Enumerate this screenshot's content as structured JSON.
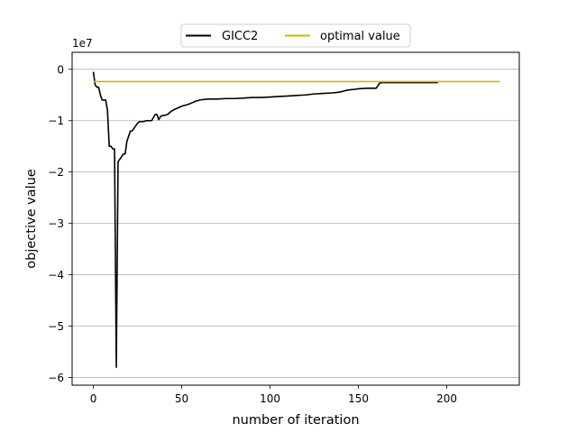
{
  "chart_data": {
    "type": "line",
    "title": "",
    "xlabel": "number of iteration",
    "ylabel": "objective value",
    "y_scale_label": "1e7",
    "xlim": [
      -12,
      241
    ],
    "ylim": [
      -6.15,
      0.33
    ],
    "x_ticks": [
      0,
      50,
      100,
      150,
      200
    ],
    "y_ticks": [
      0,
      -1,
      -2,
      -3,
      -4,
      -5,
      -6
    ],
    "x_tick_labels": [
      "0",
      "50",
      "100",
      "150",
      "200"
    ],
    "y_tick_labels": [
      "0",
      "−1",
      "−2",
      "−3",
      "−4",
      "−5",
      "−6"
    ],
    "grid": "horizontal",
    "legend_placement": "top-center, outside plot",
    "series": [
      {
        "name": "GICC2",
        "color": "#000000",
        "x": [
          0,
          1,
          2,
          3,
          4,
          5,
          6,
          7,
          8,
          9,
          10,
          11,
          12,
          13,
          14,
          15,
          16,
          17,
          18,
          19,
          20,
          21,
          22,
          23,
          24,
          25,
          26,
          27,
          28,
          30,
          33,
          35,
          36,
          37,
          38,
          39,
          40,
          42,
          44,
          45,
          46,
          48,
          50,
          52,
          54,
          56,
          58,
          60,
          62,
          65,
          70,
          75,
          80,
          85,
          90,
          95,
          100,
          105,
          110,
          115,
          120,
          125,
          130,
          135,
          138,
          140,
          142,
          145,
          148,
          150,
          155,
          160,
          162,
          163,
          165,
          170,
          180,
          190,
          195
        ],
        "y": [
          -0.05,
          -0.3,
          -0.35,
          -0.35,
          -0.5,
          -0.6,
          -0.6,
          -0.6,
          -0.8,
          -1.5,
          -1.5,
          -1.55,
          -1.55,
          -5.8,
          -1.8,
          -1.75,
          -1.7,
          -1.65,
          -1.65,
          -1.4,
          -1.3,
          -1.2,
          -1.2,
          -1.15,
          -1.1,
          -1.05,
          -1.02,
          -1.02,
          -1.02,
          -1.0,
          -1.0,
          -0.88,
          -0.88,
          -0.98,
          -0.92,
          -0.9,
          -0.9,
          -0.88,
          -0.82,
          -0.8,
          -0.78,
          -0.75,
          -0.72,
          -0.7,
          -0.68,
          -0.65,
          -0.62,
          -0.6,
          -0.59,
          -0.58,
          -0.58,
          -0.57,
          -0.57,
          -0.56,
          -0.55,
          -0.55,
          -0.54,
          -0.53,
          -0.52,
          -0.51,
          -0.5,
          -0.48,
          -0.47,
          -0.46,
          -0.45,
          -0.44,
          -0.42,
          -0.4,
          -0.39,
          -0.38,
          -0.37,
          -0.37,
          -0.27,
          -0.26,
          -0.26,
          -0.26,
          -0.26,
          -0.26,
          -0.26
        ]
      },
      {
        "name": "optimal value",
        "color": "#bfbf00",
        "x": [
          0,
          230
        ],
        "y": [
          -0.24,
          -0.24
        ]
      }
    ]
  }
}
